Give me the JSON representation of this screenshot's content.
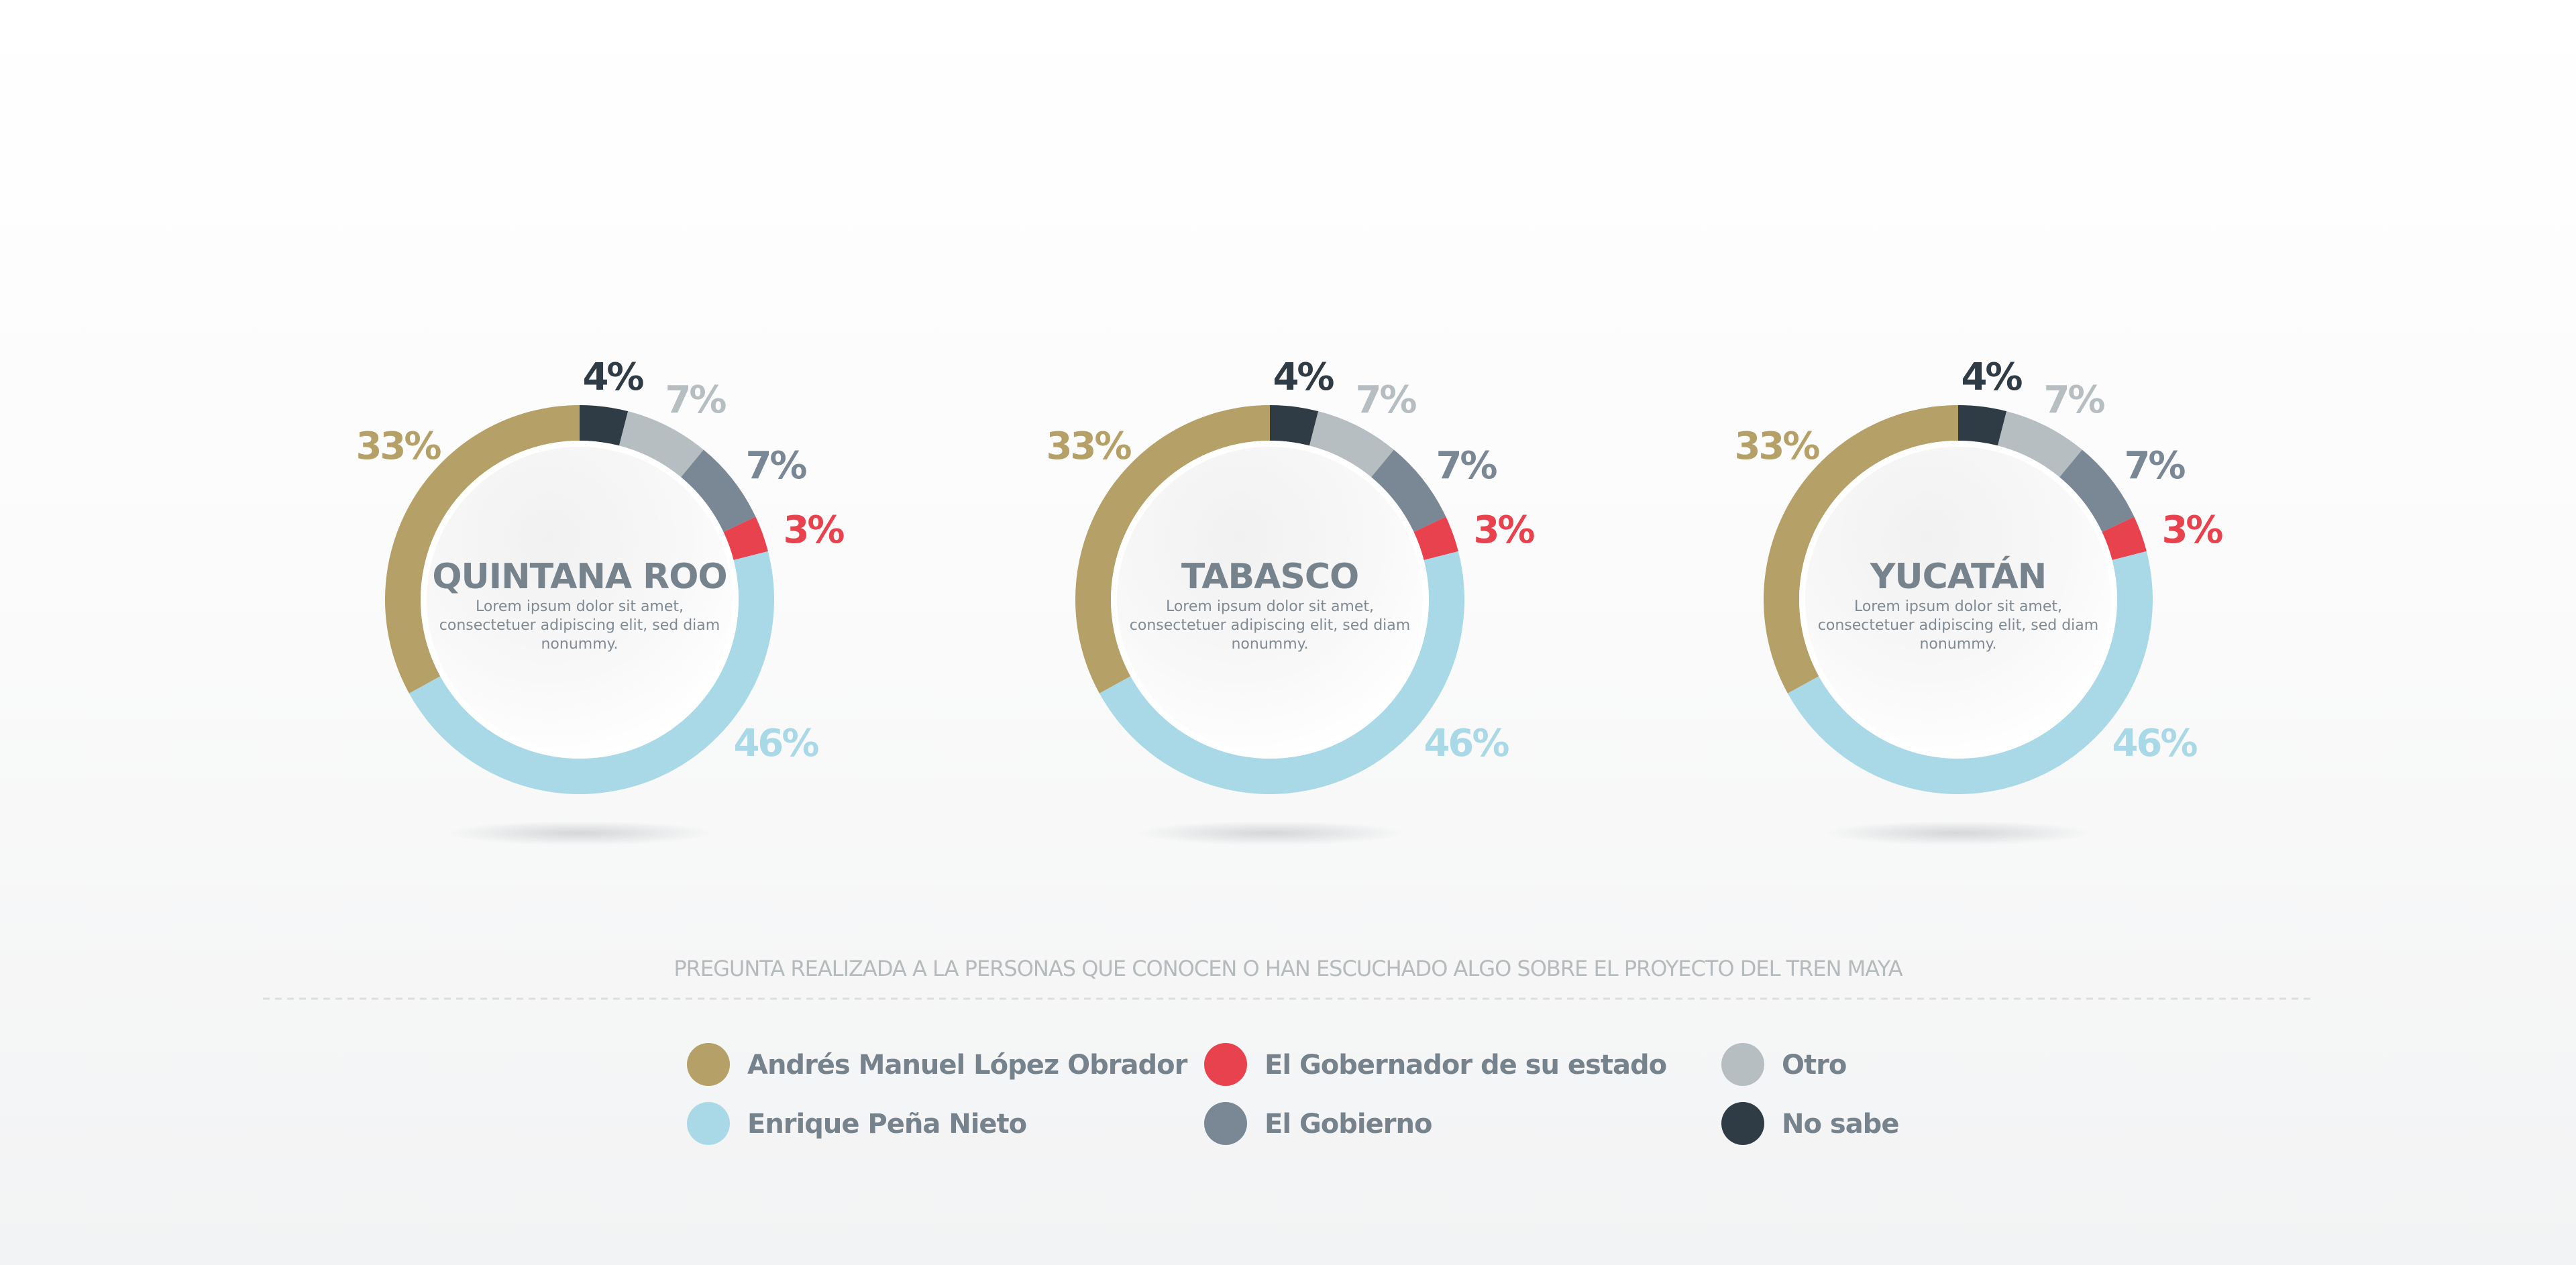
{
  "chart_data": [
    {
      "type": "pie",
      "title": "QUINTANA ROO",
      "description": [
        "Lorem ipsum dolor sit amet,",
        "consectetuer adipiscing elit, sed diam",
        "nonummy."
      ],
      "categories": [
        "No sabe",
        "Otro",
        "El Gobierno",
        "El Gobernador de su estado",
        "Enrique Peña Nieto",
        "Andrés Manuel López Obrador"
      ],
      "values": [
        4,
        7,
        7,
        3,
        46,
        33
      ],
      "labels": [
        "4%",
        "7%",
        "7%",
        "3%",
        "46%",
        "33%"
      ]
    },
    {
      "type": "pie",
      "title": "TABASCO",
      "description": [
        "Lorem ipsum dolor sit amet,",
        "consectetuer adipiscing elit, sed diam",
        "nonummy."
      ],
      "categories": [
        "No sabe",
        "Otro",
        "El Gobierno",
        "El Gobernador de su estado",
        "Enrique Peña Nieto",
        "Andrés Manuel López Obrador"
      ],
      "values": [
        4,
        7,
        7,
        3,
        46,
        33
      ],
      "labels": [
        "4%",
        "7%",
        "7%",
        "3%",
        "46%",
        "33%"
      ]
    },
    {
      "type": "pie",
      "title": "YUCATÁN",
      "description": [
        "Lorem ipsum dolor sit amet,",
        "consectetuer adipiscing elit, sed diam",
        "nonummy."
      ],
      "categories": [
        "No sabe",
        "Otro",
        "El Gobierno",
        "El Gobernador de su estado",
        "Enrique Peña Nieto",
        "Andrés Manuel López Obrador"
      ],
      "values": [
        4,
        7,
        7,
        3,
        46,
        33
      ],
      "labels": [
        "4%",
        "7%",
        "7%",
        "3%",
        "46%",
        "33%"
      ]
    }
  ],
  "colors": {
    "No sabe": "#2f3b45",
    "Otro": "#b7bec2",
    "El Gobierno": "#7a8896",
    "El Gobernador de su estado": "#e8424e",
    "Enrique Peña Nieto": "#a9d9e6",
    "Andrés Manuel López Obrador": "#b5a068"
  },
  "caption": "PREGUNTA REALIZADA A LA PERSONAS QUE CONOCEN O HAN ESCUCHADO ALGO SOBRE EL PROYECTO DEL TREN MAYA",
  "legend": [
    {
      "label": "Andrés Manuel López Obrador",
      "color": "#b5a068"
    },
    {
      "label": "Enrique Peña Nieto",
      "color": "#a9d9e6"
    },
    {
      "label": "El Gobernador de su estado",
      "color": "#e8424e"
    },
    {
      "label": "El Gobierno",
      "color": "#7a8896"
    },
    {
      "label": "Otro",
      "color": "#b7bec2"
    },
    {
      "label": "No sabe",
      "color": "#2f3b45"
    }
  ]
}
